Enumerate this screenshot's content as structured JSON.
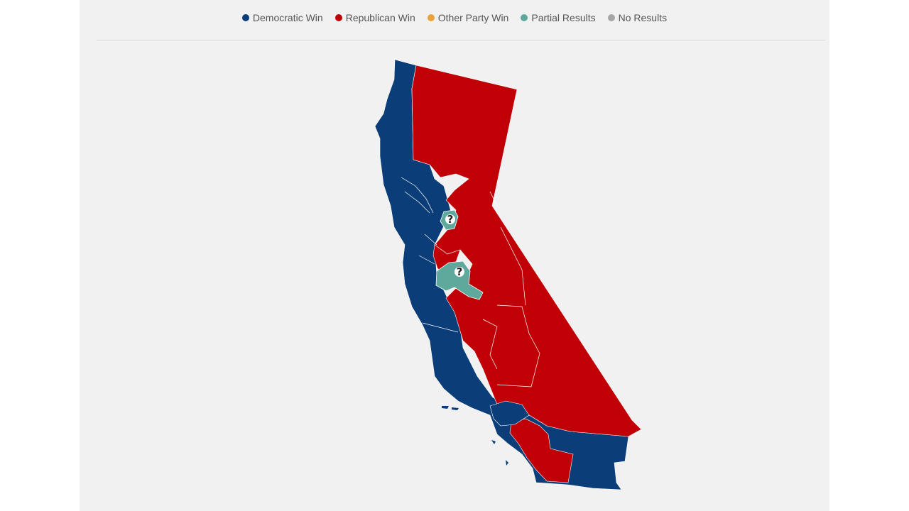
{
  "legend": {
    "items": [
      {
        "label": "Democratic Win",
        "color": "#0b3d78"
      },
      {
        "label": "Republican Win",
        "color": "#c00006"
      },
      {
        "label": "Other Party Win",
        "color": "#e8a33a"
      },
      {
        "label": "Partial Results",
        "color": "#5fa89c"
      },
      {
        "label": "No Results",
        "color": "#a6a6a6"
      }
    ]
  },
  "map": {
    "colors": {
      "democratic": "#0b3d78",
      "republican": "#c00006",
      "partial": "#5fa89c",
      "ocean": "#f1f1f1",
      "border": "#ffffff"
    },
    "partial_marker": "?"
  }
}
